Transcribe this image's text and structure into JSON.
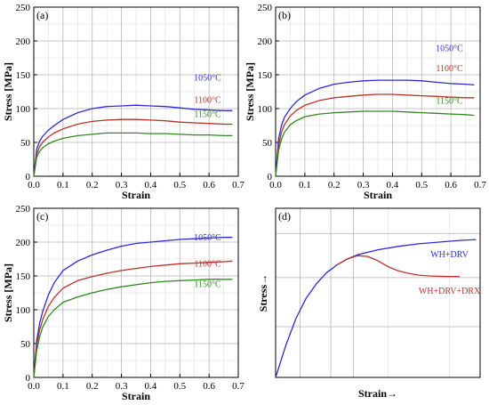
{
  "figure": {
    "colors": {
      "blue": "#2b2bd6",
      "red": "#b8322a",
      "green": "#2e8a1e",
      "grid_major": "#b5b5b5",
      "grid_minor": "#dcdcdc",
      "axis": "#000000"
    }
  },
  "chart_data": [
    {
      "panel_label": "(a)",
      "type": "line",
      "xlabel": "Strain",
      "ylabel": "Stress [MPa]",
      "xlim": [
        0,
        0.7
      ],
      "ylim": [
        0,
        250
      ],
      "xticks": [
        "0.0",
        "0.1",
        "0.2",
        "0.3",
        "0.4",
        "0.5",
        "0.6",
        "0.7"
      ],
      "yticks": [
        "0",
        "50",
        "100",
        "150",
        "200",
        "250"
      ],
      "grid": true,
      "series": [
        {
          "name": "1050°C",
          "color": "#2b2bd6",
          "x": [
            0,
            0.01,
            0.02,
            0.03,
            0.05,
            0.07,
            0.1,
            0.15,
            0.2,
            0.25,
            0.3,
            0.35,
            0.4,
            0.45,
            0.5,
            0.55,
            0.6,
            0.65,
            0.68
          ],
          "y": [
            0,
            40,
            52,
            59,
            68,
            75,
            84,
            94,
            100,
            103,
            104,
            105,
            104,
            103,
            101,
            99,
            98,
            97,
            97
          ]
        },
        {
          "name": "1100°C",
          "color": "#b8322a",
          "x": [
            0,
            0.01,
            0.02,
            0.03,
            0.05,
            0.07,
            0.1,
            0.15,
            0.2,
            0.25,
            0.3,
            0.35,
            0.4,
            0.45,
            0.5,
            0.55,
            0.6,
            0.65,
            0.68
          ],
          "y": [
            0,
            33,
            44,
            50,
            58,
            64,
            70,
            77,
            81,
            83,
            84,
            84,
            83,
            82,
            80,
            79,
            78,
            77,
            77
          ]
        },
        {
          "name": "1150°C",
          "color": "#2e8a1e",
          "x": [
            0,
            0.01,
            0.02,
            0.03,
            0.05,
            0.07,
            0.1,
            0.15,
            0.2,
            0.25,
            0.3,
            0.35,
            0.4,
            0.45,
            0.5,
            0.55,
            0.6,
            0.65,
            0.68
          ],
          "y": [
            0,
            28,
            37,
            42,
            48,
            52,
            56,
            60,
            62,
            64,
            64,
            64,
            63,
            63,
            62,
            61,
            61,
            60,
            60
          ]
        }
      ]
    },
    {
      "panel_label": "(b)",
      "type": "line",
      "xlabel": "Strain",
      "ylabel": "Stress [MPa]",
      "xlim": [
        0,
        0.7
      ],
      "ylim": [
        0,
        250
      ],
      "xticks": [
        "0.0",
        "0.1",
        "0.2",
        "0.3",
        "0.4",
        "0.5",
        "0.6",
        "0.7"
      ],
      "yticks": [
        "0",
        "50",
        "100",
        "150",
        "200",
        "250"
      ],
      "grid": true,
      "series": [
        {
          "name": "1050°C",
          "color": "#2b2bd6",
          "x": [
            0,
            0.01,
            0.02,
            0.03,
            0.05,
            0.07,
            0.1,
            0.15,
            0.2,
            0.25,
            0.3,
            0.35,
            0.4,
            0.45,
            0.5,
            0.55,
            0.6,
            0.65,
            0.68
          ],
          "y": [
            0,
            55,
            75,
            87,
            100,
            110,
            120,
            130,
            136,
            139,
            141,
            142,
            142,
            142,
            141,
            139,
            137,
            136,
            135
          ]
        },
        {
          "name": "1100°C",
          "color": "#b8322a",
          "x": [
            0,
            0.01,
            0.02,
            0.03,
            0.05,
            0.07,
            0.1,
            0.15,
            0.2,
            0.25,
            0.3,
            0.35,
            0.4,
            0.45,
            0.5,
            0.55,
            0.6,
            0.65,
            0.68
          ],
          "y": [
            0,
            45,
            65,
            76,
            89,
            97,
            105,
            112,
            116,
            118,
            120,
            121,
            121,
            120,
            119,
            118,
            117,
            116,
            116
          ]
        },
        {
          "name": "1150°C",
          "color": "#2e8a1e",
          "x": [
            0,
            0.01,
            0.02,
            0.03,
            0.05,
            0.07,
            0.1,
            0.15,
            0.2,
            0.25,
            0.3,
            0.35,
            0.4,
            0.45,
            0.5,
            0.55,
            0.6,
            0.65,
            0.68
          ],
          "y": [
            0,
            38,
            55,
            65,
            76,
            82,
            88,
            92,
            94,
            95,
            96,
            96,
            96,
            95,
            94,
            93,
            92,
            91,
            90
          ]
        }
      ]
    },
    {
      "panel_label": "(c)",
      "type": "line",
      "xlabel": "Strain",
      "ylabel": "Stress [MPa]",
      "xlim": [
        0,
        0.7
      ],
      "ylim": [
        0,
        250
      ],
      "xticks": [
        "0.0",
        "0.1",
        "0.2",
        "0.3",
        "0.4",
        "0.5",
        "0.6",
        "0.7"
      ],
      "yticks": [
        "0",
        "50",
        "100",
        "150",
        "200",
        "250"
      ],
      "grid": true,
      "series": [
        {
          "name": "1050°C",
          "color": "#2b2bd6",
          "x": [
            0,
            0.01,
            0.02,
            0.03,
            0.05,
            0.07,
            0.1,
            0.15,
            0.2,
            0.25,
            0.3,
            0.35,
            0.4,
            0.45,
            0.5,
            0.55,
            0.6,
            0.65,
            0.68
          ],
          "y": [
            0,
            55,
            80,
            97,
            122,
            140,
            158,
            172,
            181,
            188,
            194,
            198,
            200,
            202,
            204,
            205,
            206,
            207,
            207
          ]
        },
        {
          "name": "1100°C",
          "color": "#b8322a",
          "x": [
            0,
            0.01,
            0.02,
            0.03,
            0.05,
            0.07,
            0.1,
            0.15,
            0.2,
            0.25,
            0.3,
            0.35,
            0.4,
            0.45,
            0.5,
            0.55,
            0.6,
            0.65,
            0.68
          ],
          "y": [
            0,
            48,
            70,
            85,
            105,
            118,
            132,
            143,
            149,
            154,
            158,
            161,
            164,
            166,
            168,
            169,
            170,
            171,
            172
          ]
        },
        {
          "name": "1150°C",
          "color": "#2e8a1e",
          "x": [
            0,
            0.01,
            0.02,
            0.03,
            0.05,
            0.07,
            0.1,
            0.15,
            0.2,
            0.25,
            0.3,
            0.35,
            0.4,
            0.45,
            0.5,
            0.55,
            0.6,
            0.65,
            0.68
          ],
          "y": [
            0,
            40,
            60,
            74,
            90,
            100,
            111,
            119,
            125,
            130,
            134,
            137,
            140,
            142,
            143,
            144,
            145,
            145,
            145
          ]
        }
      ]
    },
    {
      "panel_label": "(d)",
      "type": "line",
      "xlabel": "Strain→",
      "ylabel": "Stress→",
      "xlim": [
        0,
        1
      ],
      "ylim": [
        0,
        1
      ],
      "grid": true,
      "schematic": true,
      "series": [
        {
          "name": "WH+DRV",
          "color": "#2b2bd6",
          "x": [
            0,
            0.05,
            0.1,
            0.15,
            0.2,
            0.25,
            0.3,
            0.35,
            0.4,
            0.5,
            0.6,
            0.7,
            0.8,
            0.9,
            0.98
          ],
          "y": [
            0,
            0.19,
            0.35,
            0.47,
            0.555,
            0.62,
            0.665,
            0.7,
            0.725,
            0.755,
            0.775,
            0.79,
            0.8,
            0.81,
            0.815
          ]
        },
        {
          "name": "WH+DRV+DRX",
          "color": "#b8322a",
          "x": [
            0.3,
            0.35,
            0.4,
            0.45,
            0.5,
            0.55,
            0.6,
            0.65,
            0.7,
            0.75,
            0.8,
            0.85,
            0.9
          ],
          "y": [
            0.665,
            0.7,
            0.72,
            0.715,
            0.69,
            0.655,
            0.63,
            0.615,
            0.605,
            0.6,
            0.598,
            0.597,
            0.597
          ]
        }
      ]
    }
  ]
}
